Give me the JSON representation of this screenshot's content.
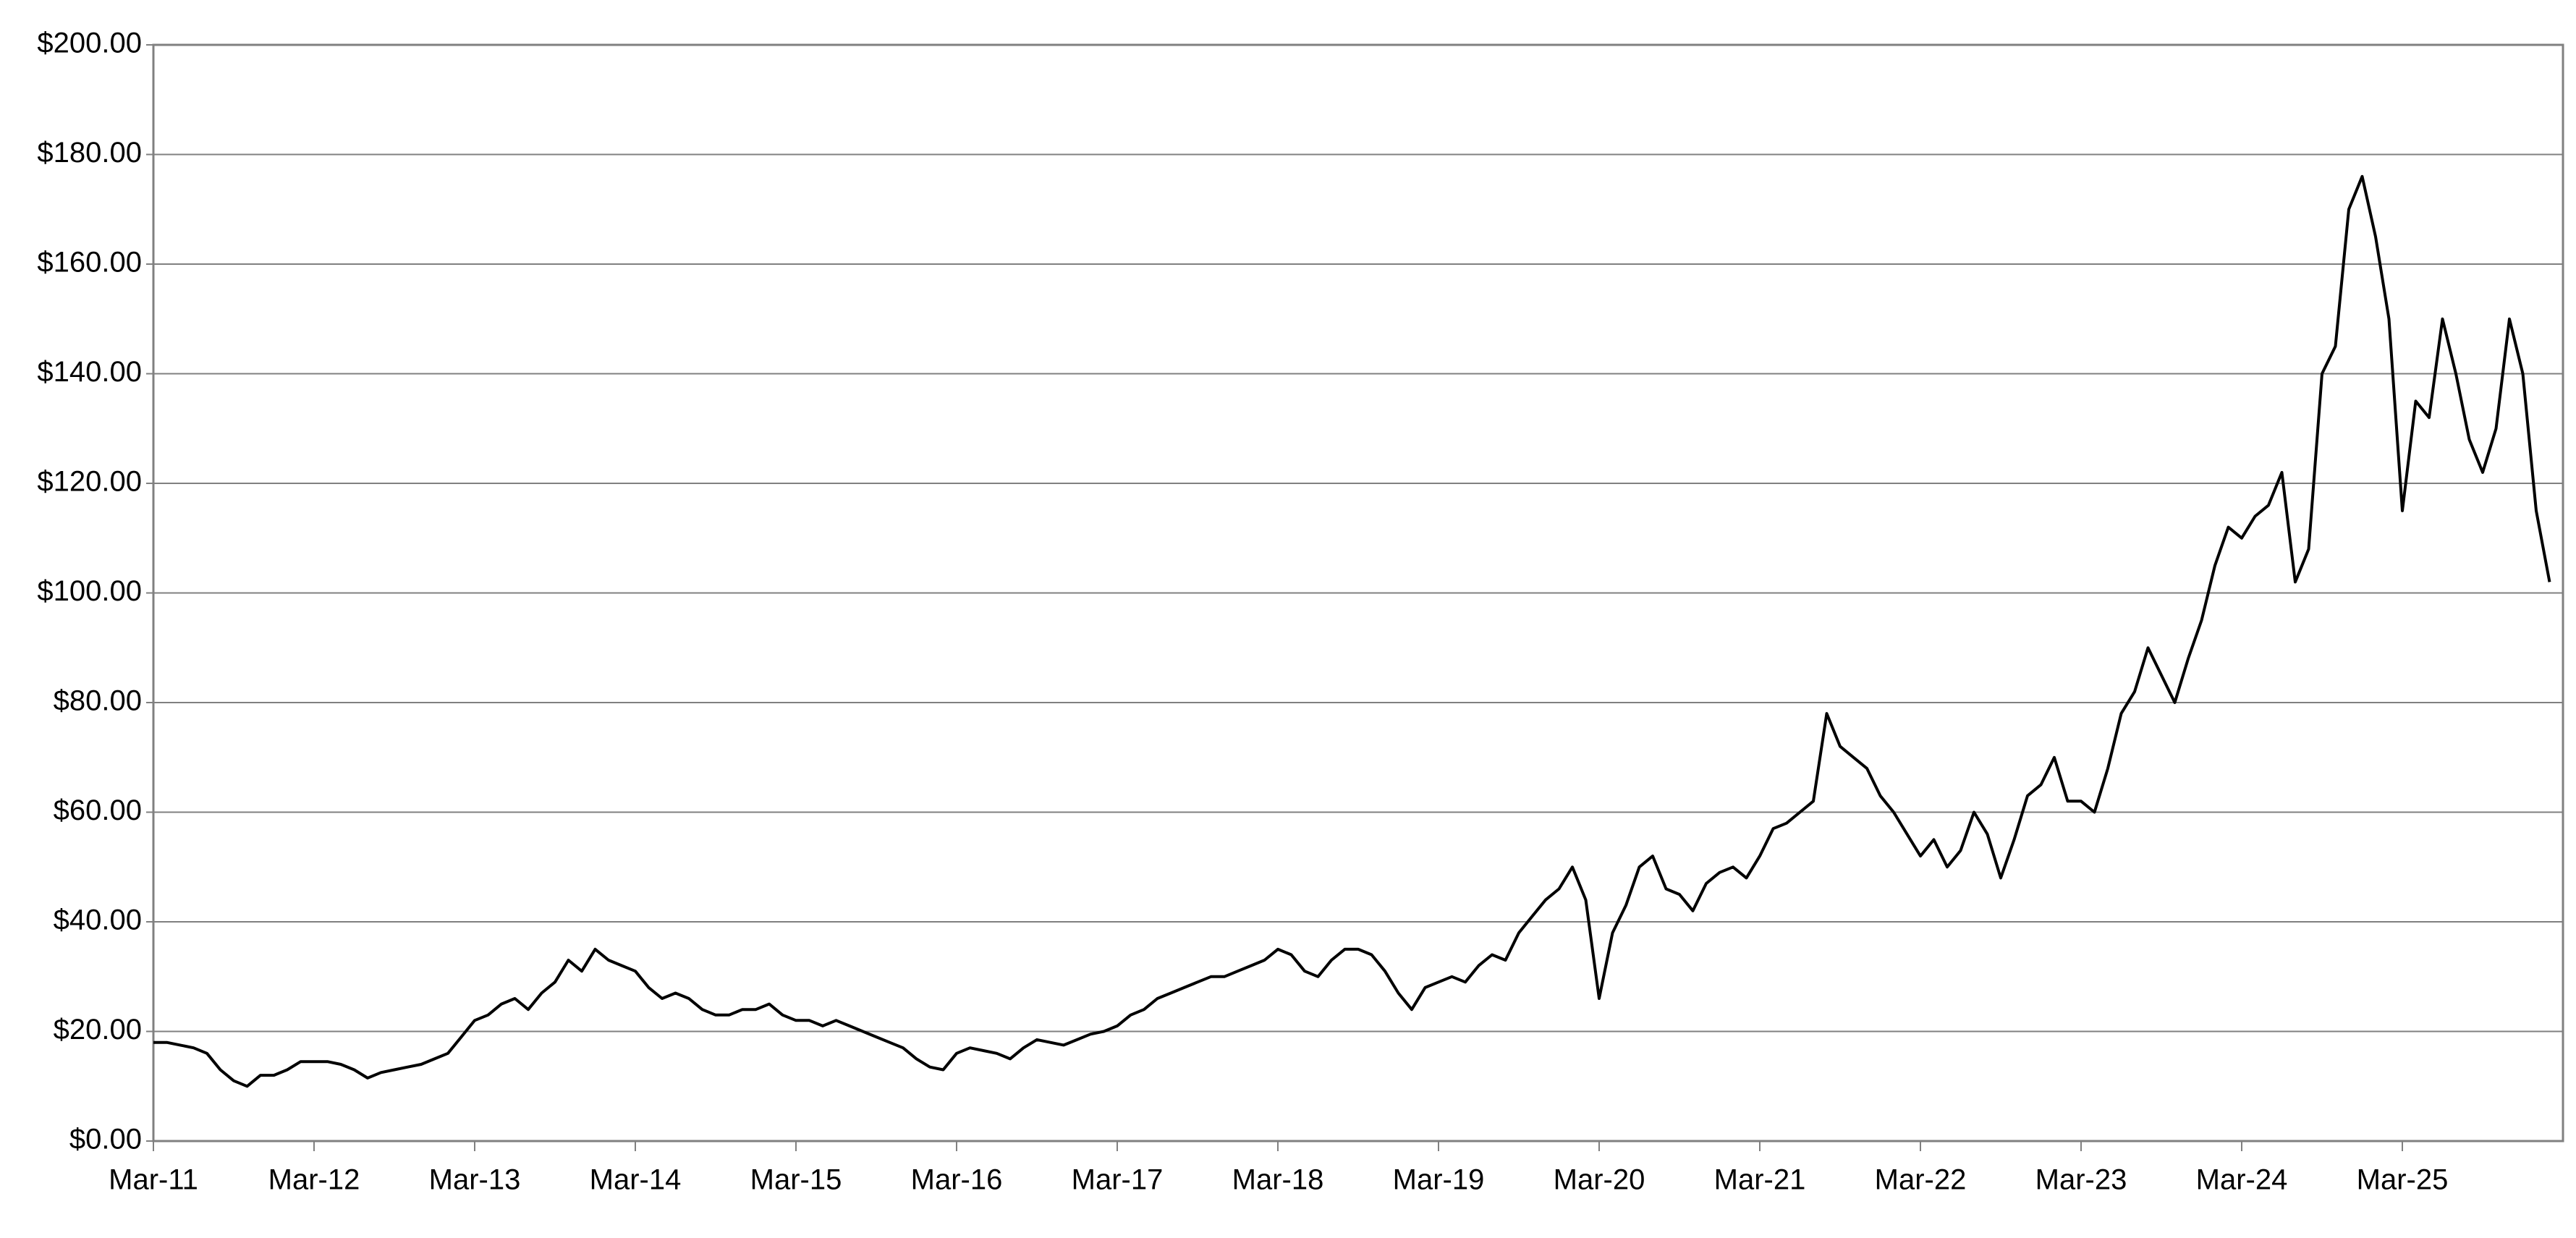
{
  "chart_data": {
    "type": "line",
    "categories": [
      "Mar-11",
      null,
      null,
      null,
      null,
      null,
      null,
      null,
      null,
      null,
      null,
      null,
      "Mar-12",
      null,
      null,
      null,
      null,
      null,
      null,
      null,
      null,
      null,
      null,
      null,
      "Mar-13",
      null,
      null,
      null,
      null,
      null,
      null,
      null,
      null,
      null,
      null,
      null,
      "Mar-14",
      null,
      null,
      null,
      null,
      null,
      null,
      null,
      null,
      null,
      null,
      null,
      "Mar-15",
      null,
      null,
      null,
      null,
      null,
      null,
      null,
      null,
      null,
      null,
      null,
      "Mar-16",
      null,
      null,
      null,
      null,
      null,
      null,
      null,
      null,
      null,
      null,
      null,
      "Mar-17",
      null,
      null,
      null,
      null,
      null,
      null,
      null,
      null,
      null,
      null,
      null,
      "Mar-18",
      null,
      null,
      null,
      null,
      null,
      null,
      null,
      null,
      null,
      null,
      null,
      "Mar-19",
      null,
      null,
      null,
      null,
      null,
      null,
      null,
      null,
      null,
      null,
      null,
      "Mar-20",
      null,
      null,
      null,
      null,
      null,
      null,
      null,
      null,
      null,
      null,
      null,
      "Mar-21",
      null,
      null,
      null,
      null,
      null,
      null,
      null,
      null,
      null,
      null,
      null,
      "Mar-22",
      null,
      null,
      null,
      null,
      null,
      null,
      null,
      null,
      null,
      null,
      null,
      "Mar-23",
      null,
      null,
      null,
      null,
      null,
      null,
      null,
      null,
      null,
      null,
      null,
      "Mar-24",
      null,
      null,
      null,
      null,
      null,
      null,
      null,
      null,
      null,
      null,
      null,
      "Mar-25",
      null,
      null,
      null,
      null,
      null,
      null,
      null,
      null,
      null,
      null,
      null
    ],
    "values": [
      18,
      18,
      17.5,
      17,
      16,
      13,
      11,
      10,
      12,
      12,
      13,
      14.5,
      14.5,
      14.5,
      14,
      13,
      11.5,
      12.5,
      13,
      13.5,
      14,
      15,
      16,
      19,
      22,
      23,
      25,
      26,
      24,
      27,
      29,
      33,
      31,
      35,
      33,
      32,
      31,
      28,
      26,
      27,
      26,
      24,
      23,
      23,
      24,
      24,
      25,
      23,
      22,
      22,
      21,
      22,
      21,
      20,
      19,
      18,
      17,
      15,
      13.5,
      13,
      16,
      17,
      16.5,
      16,
      15,
      17,
      18.5,
      18,
      17.5,
      18.5,
      19.5,
      20,
      21,
      23,
      24,
      26,
      27,
      28,
      29,
      30,
      30,
      31,
      32,
      33,
      35,
      34,
      31,
      30,
      33,
      35,
      35,
      34,
      31,
      27,
      24,
      28,
      29,
      30,
      29,
      32,
      34,
      33,
      38,
      41,
      44,
      46,
      50,
      44,
      26,
      38,
      43,
      50,
      52,
      46,
      45,
      42,
      47,
      49,
      50,
      48,
      52,
      57,
      58,
      60,
      62,
      78,
      72,
      70,
      68,
      63,
      60,
      56,
      52,
      55,
      50,
      53,
      60,
      56,
      48,
      55,
      63,
      65,
      70,
      62,
      62,
      60,
      68,
      78,
      82,
      90,
      85,
      80,
      88,
      95,
      105,
      112,
      110,
      114,
      116,
      122,
      102,
      108,
      140,
      145,
      170,
      176,
      165,
      150,
      115,
      135,
      132,
      150,
      140,
      128,
      122,
      130,
      150,
      140,
      115,
      102
    ],
    "color": "#000000",
    "ylim": [
      0,
      200
    ],
    "yticks": [
      {
        "value": 0,
        "label": "$0.00"
      },
      {
        "value": 20,
        "label": "$20.00"
      },
      {
        "value": 40,
        "label": "$40.00"
      },
      {
        "value": 60,
        "label": "$60.00"
      },
      {
        "value": 80,
        "label": "$80.00"
      },
      {
        "value": 100,
        "label": "$100.00"
      },
      {
        "value": 120,
        "label": "$120.00"
      },
      {
        "value": 140,
        "label": "$140.00"
      },
      {
        "value": 160,
        "label": "$160.00"
      },
      {
        "value": 180,
        "label": "$180.00"
      },
      {
        "value": 200,
        "label": "$200.00"
      }
    ],
    "grid": true
  }
}
